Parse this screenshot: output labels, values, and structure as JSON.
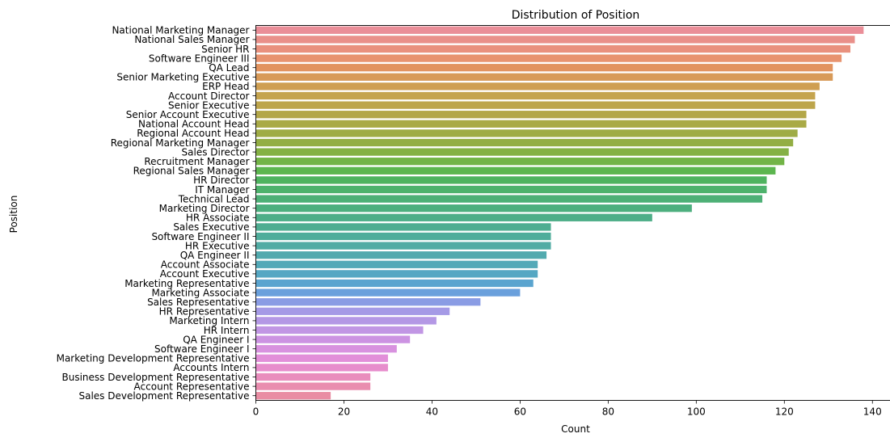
{
  "chart_data": {
    "type": "bar",
    "orientation": "horizontal",
    "title": "Distribution of Position",
    "xlabel": "Count",
    "ylabel": "Position",
    "xlim": [
      0,
      145
    ],
    "x_ticks": [
      0,
      20,
      40,
      60,
      80,
      100,
      120,
      140
    ],
    "grid": false,
    "categories": [
      "National Marketing Manager",
      "National Sales Manager",
      "Senior HR",
      "Software Engineer III",
      "QA Lead",
      "Senior Marketing Executive",
      "ERP Head",
      "Account Director",
      "Senior Executive",
      "Senior Account Executive",
      "National Account Head",
      "Regional Account Head",
      "Regional Marketing Manager",
      "Sales Director",
      "Recruitment Manager",
      "Regional Sales Manager",
      "HR Director",
      "IT Manager",
      "Technical Lead",
      "Marketing Director",
      "HR Associate",
      "Sales Executive",
      "Software Engineer II",
      "HR Executive",
      "QA Engineer II",
      "Account Associate",
      "Account Executive",
      "Marketing Representative",
      "Marketing Associate",
      "Sales Representative",
      "HR Representative",
      "Marketing Intern",
      "HR Intern",
      "QA Engineer I",
      "Software Engineer I",
      "Marketing Development Representative",
      "Accounts Intern",
      "Business Development Representative",
      "Account Representative",
      "Sales Development Representative"
    ],
    "values": [
      138,
      136,
      135,
      133,
      131,
      131,
      128,
      127,
      127,
      125,
      125,
      123,
      122,
      121,
      120,
      118,
      116,
      116,
      115,
      99,
      90,
      67,
      67,
      67,
      66,
      64,
      64,
      63,
      60,
      51,
      44,
      41,
      38,
      35,
      32,
      30,
      30,
      26,
      26,
      17
    ],
    "colors": [
      "#ea8e98",
      "#e9908a",
      "#e9917e",
      "#e8936f",
      "#e2935f",
      "#d89a58",
      "#cf9f52",
      "#c5a44e",
      "#bda54b",
      "#b3a748",
      "#a9aa46",
      "#9fac45",
      "#93ae44",
      "#84b144",
      "#72b447",
      "#5cb64f",
      "#4eb35f",
      "#4db26c",
      "#4db076",
      "#4daf7e",
      "#4eae88",
      "#4fad91",
      "#50ad9b",
      "#51aca4",
      "#52aaae",
      "#53a9b8",
      "#55a7c3",
      "#5aa4cf",
      "#6aa0dc",
      "#8a9ce4",
      "#a59ae6",
      "#b498e5",
      "#c196e4",
      "#cc93e2",
      "#d892df",
      "#e28fd9",
      "#e78dcc",
      "#e98dbd",
      "#e98daf",
      "#e98da3"
    ]
  }
}
